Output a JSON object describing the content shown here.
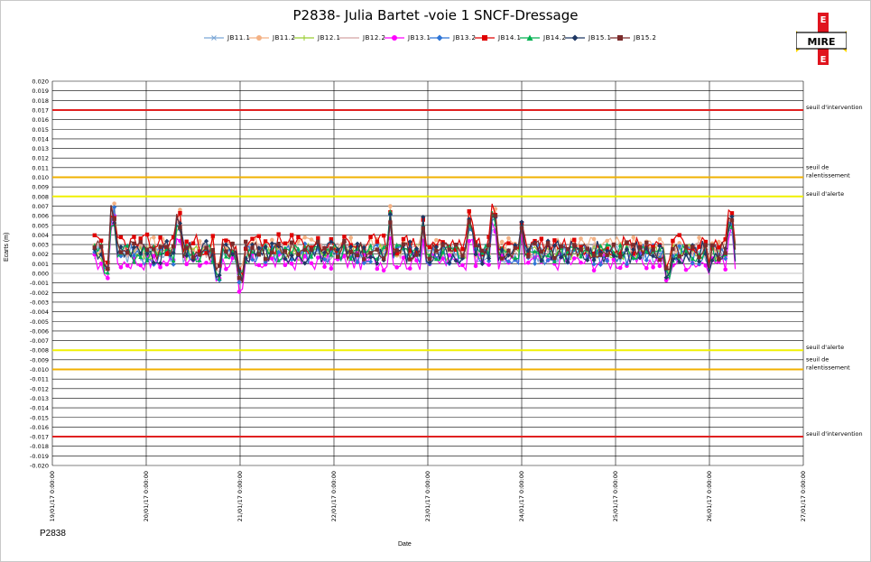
{
  "chart_data": {
    "type": "line",
    "title": "P2838- Julia Bartet -voie 1 SNCF-Dressage",
    "xlabel": "Date",
    "ylabel": "Ecarts (m)",
    "ylim": [
      -0.02,
      0.02
    ],
    "yticks": [
      "0.020",
      "0.019",
      "0.018",
      "0.017",
      "0.016",
      "0.015",
      "0.014",
      "0.013",
      "0.012",
      "0.011",
      "0.010",
      "0.009",
      "0.008",
      "0.007",
      "0.006",
      "0.005",
      "0.004",
      "0.003",
      "0.002",
      "0.001",
      "0.000",
      "-0.001",
      "-0.002",
      "-0.003",
      "-0.004",
      "-0.005",
      "-0.006",
      "-0.007",
      "-0.008",
      "-0.009",
      "-0.010",
      "-0.011",
      "-0.012",
      "-0.013",
      "-0.014",
      "-0.015",
      "-0.016",
      "-0.017",
      "-0.018",
      "-0.019",
      "-0.020"
    ],
    "xticks": [
      "19/01/17 0:00:00",
      "20/01/17 0:00:00",
      "21/01/17 0:00:00",
      "22/01/17 0:00:00",
      "23/01/17 0:00:00",
      "24/01/17 0:00:00",
      "25/01/17 0:00:00",
      "26/01/17 0:00:00",
      "27/01/17 0:00:00"
    ],
    "xrange_days": [
      0,
      8
    ],
    "grid": "horizontal and vertical",
    "legend_position": "top",
    "thresholds": [
      {
        "label": "seuil d'intervention",
        "value": 0.017,
        "color": "#e02020"
      },
      {
        "label": "seuil de ralentissement",
        "value": 0.01,
        "color": "#f0b000"
      },
      {
        "label": "seuil d'alerte",
        "value": 0.008,
        "color": "#f0f000"
      },
      {
        "label": "seuil d'alerte",
        "value": -0.008,
        "color": "#f0f000"
      },
      {
        "label": "seuil de ralentissement",
        "value": -0.01,
        "color": "#f0b000"
      },
      {
        "label": "seuil d'intervention",
        "value": -0.017,
        "color": "#e02020"
      }
    ],
    "series": [
      {
        "name": "JB11.1",
        "color": "#7aa6d6",
        "marker": "x",
        "base": 0.002,
        "amp": 0.0009,
        "seed": 3
      },
      {
        "name": "JB11.2",
        "color": "#f4b183",
        "marker": "circle",
        "base": 0.0028,
        "amp": 0.001,
        "seed": 7
      },
      {
        "name": "JB12.1",
        "color": "#9acd32",
        "marker": "plus",
        "base": 0.0022,
        "amp": 0.0009,
        "seed": 11
      },
      {
        "name": "JB12.2",
        "color": "#d4a5a5",
        "marker": "none",
        "base": 0.0024,
        "amp": 0.0008,
        "seed": 13
      },
      {
        "name": "JB13.1",
        "color": "#ff00ff",
        "marker": "circle",
        "base": 0.0012,
        "amp": 0.0009,
        "seed": 17
      },
      {
        "name": "JB13.2",
        "color": "#2e75d6",
        "marker": "diamond",
        "base": 0.002,
        "amp": 0.0011,
        "seed": 19
      },
      {
        "name": "JB14.1",
        "color": "#e00000",
        "marker": "square",
        "base": 0.003,
        "amp": 0.0011,
        "seed": 23
      },
      {
        "name": "JB14.2",
        "color": "#00b050",
        "marker": "triangle",
        "base": 0.0021,
        "amp": 0.0009,
        "seed": 29
      },
      {
        "name": "JB15.1",
        "color": "#1f3864",
        "marker": "diamond",
        "base": 0.0022,
        "amp": 0.0012,
        "seed": 31
      },
      {
        "name": "JB15.2",
        "color": "#7b2c2c",
        "marker": "square",
        "base": 0.0024,
        "amp": 0.001,
        "seed": 37
      }
    ],
    "data_note": "10 dense series from ~19/01 12:00 to ~26/01 07:00, values mostly between -0.001 and 0.007"
  },
  "logo_text": "MIRE",
  "station_label": "P2838"
}
